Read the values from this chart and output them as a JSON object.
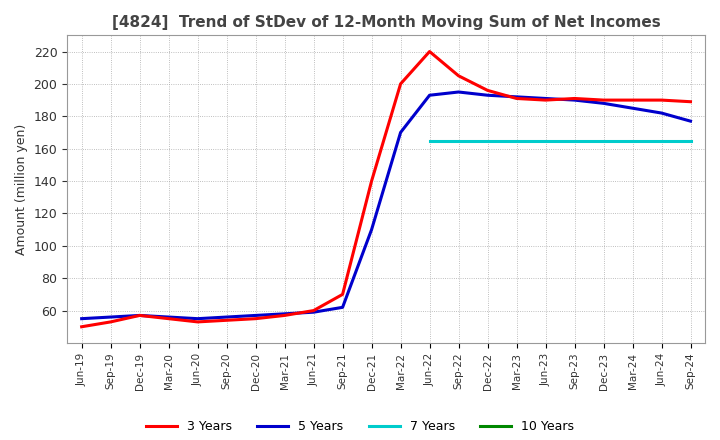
{
  "title": "[4824]  Trend of StDev of 12-Month Moving Sum of Net Incomes",
  "ylabel": "Amount (million yen)",
  "ylim": [
    40,
    230
  ],
  "yticks": [
    60,
    80,
    100,
    120,
    140,
    160,
    180,
    200,
    220
  ],
  "legend_labels": [
    "3 Years",
    "5 Years",
    "7 Years",
    "10 Years"
  ],
  "legend_colors": [
    "#ff0000",
    "#0000cc",
    "#00cccc",
    "#008800"
  ],
  "background_color": "#ffffff",
  "plot_bg_color": "#ffffff",
  "grid_color": "#aaaaaa",
  "title_color": "#444444",
  "x_labels": [
    "Jun-19",
    "Sep-19",
    "Dec-19",
    "Mar-20",
    "Jun-20",
    "Sep-20",
    "Dec-20",
    "Mar-21",
    "Jun-21",
    "Sep-21",
    "Dec-21",
    "Mar-22",
    "Jun-22",
    "Sep-22",
    "Dec-22",
    "Mar-23",
    "Jun-23",
    "Sep-23",
    "Dec-23",
    "Mar-24",
    "Jun-24",
    "Sep-24"
  ],
  "y_3yr": [
    50,
    53,
    57,
    55,
    53,
    54,
    55,
    57,
    60,
    70,
    140,
    200,
    220,
    205,
    196,
    191,
    190,
    191,
    190,
    190,
    190,
    189
  ],
  "y_5yr": [
    55,
    56,
    57,
    56,
    55,
    56,
    57,
    58,
    59,
    62,
    110,
    170,
    193,
    195,
    193,
    192,
    191,
    190,
    188,
    185,
    182,
    177
  ],
  "y_7yr": [
    null,
    null,
    null,
    null,
    null,
    null,
    null,
    null,
    null,
    null,
    null,
    null,
    165,
    165,
    165,
    165,
    165,
    165,
    165,
    165,
    165,
    165
  ],
  "y_10yr": [
    null,
    null,
    null,
    null,
    null,
    null,
    null,
    null,
    null,
    null,
    null,
    null,
    null,
    null,
    null,
    null,
    null,
    null,
    null,
    null,
    null,
    null
  ]
}
